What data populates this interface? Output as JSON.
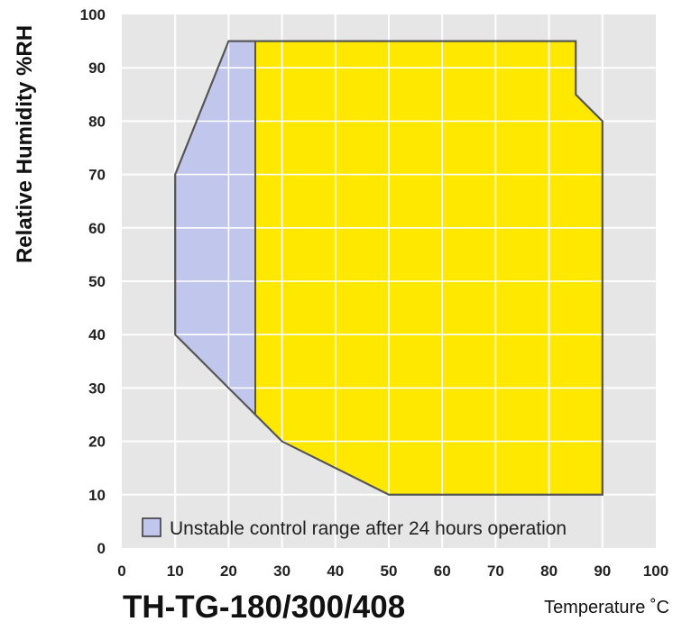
{
  "chart_data": {
    "type": "area",
    "title": "TH-TG-180/300/408",
    "xlabel": "Temperature ˚C",
    "ylabel": "Relative Humidity %RH",
    "xlim": [
      0,
      100
    ],
    "ylim": [
      0,
      100
    ],
    "x_ticks": [
      "0",
      "10",
      "20",
      "30",
      "40",
      "50",
      "60",
      "70",
      "80",
      "90",
      "100"
    ],
    "y_ticks": [
      "0",
      "10",
      "20",
      "30",
      "40",
      "50",
      "60",
      "70",
      "80",
      "90",
      "100"
    ],
    "grid": true,
    "series": [
      {
        "key": "unstable",
        "name": "Unstable control range after 24 hours operation",
        "color": "#c0c6ec",
        "points": [
          [
            20,
            95
          ],
          [
            25,
            95
          ],
          [
            25,
            25
          ],
          [
            20,
            30
          ],
          [
            10,
            40
          ],
          [
            10,
            70
          ]
        ]
      },
      {
        "key": "range",
        "color": "#ffe800",
        "points": [
          [
            25,
            95
          ],
          [
            85,
            95
          ],
          [
            85,
            85
          ],
          [
            90,
            80
          ],
          [
            90,
            10
          ],
          [
            50,
            10
          ],
          [
            30,
            20
          ],
          [
            25,
            25
          ]
        ]
      }
    ],
    "outline_color": "#555555",
    "plot_background": "#e6e6e6",
    "legend": "bottom-left"
  }
}
